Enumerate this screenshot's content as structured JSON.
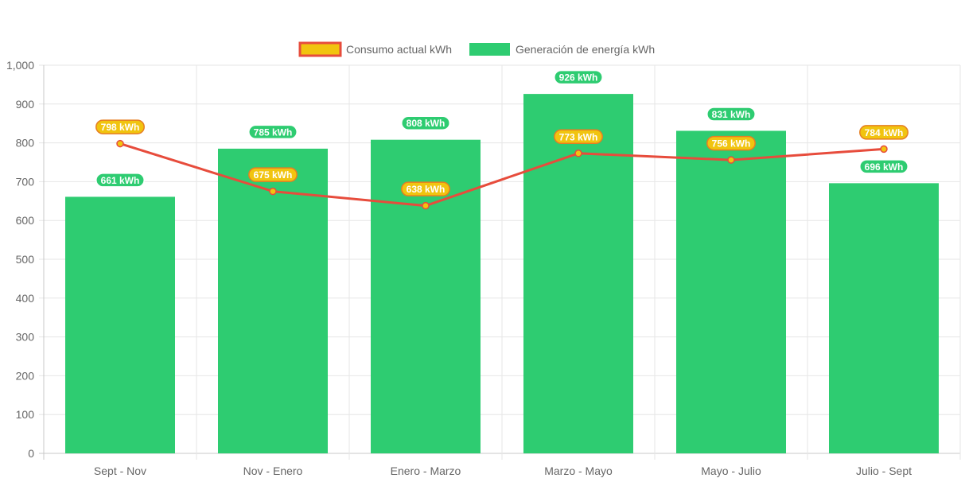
{
  "chart_data": {
    "type": "bar",
    "categories": [
      "Sept - Nov",
      "Nov - Enero",
      "Enero - Marzo",
      "Marzo - Mayo",
      "Mayo - Julio",
      "Julio - Sept"
    ],
    "series": [
      {
        "name": "Consumo actual kWh",
        "kind": "line",
        "values": [
          798,
          675,
          638,
          773,
          756,
          784
        ],
        "labels": [
          "798 kWh",
          "675 kWh",
          "638 kWh",
          "773 kWh",
          "756 kWh",
          "784 kWh"
        ],
        "color": "#e74c3c",
        "fill_color": "#f1c40f"
      },
      {
        "name": "Generación de energía kWh",
        "kind": "bar",
        "values": [
          661,
          785,
          808,
          926,
          831,
          696
        ],
        "labels": [
          "661 kWh",
          "785 kWh",
          "808 kWh",
          "926 kWh",
          "831 kWh",
          "696 kWh"
        ],
        "color": "#2ecc71"
      }
    ],
    "y_ticks": [
      "0",
      "100",
      "200",
      "300",
      "400",
      "500",
      "600",
      "700",
      "800",
      "900",
      "1,000"
    ],
    "ylim": [
      0,
      1000
    ],
    "grid": true,
    "legend_position": "top-center"
  }
}
